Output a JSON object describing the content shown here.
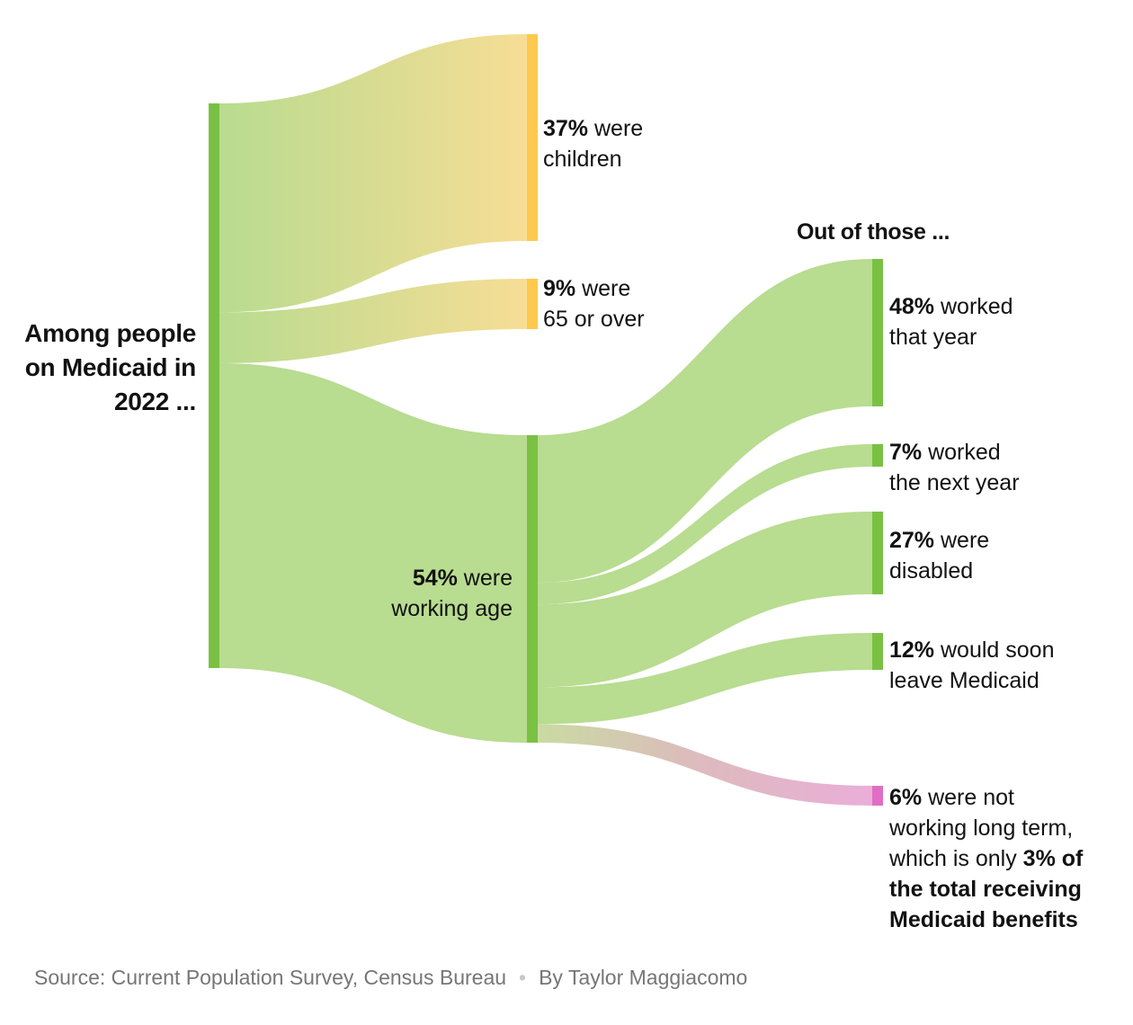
{
  "chart_data": {
    "type": "sankey",
    "colors": {
      "node_green": "#7ac143",
      "node_yellow": "#fec94d",
      "node_pink": "#e06ec4",
      "flow_green": "#b8dc90",
      "flow_yellow": "#f7dd95",
      "flow_pink": "#eaaed9"
    },
    "root": {
      "label": "Among people on Medicaid in 2022 ..."
    },
    "level1": [
      {
        "id": "children",
        "value": 37,
        "pct": "37%",
        "rest": " were",
        "rest2": "children"
      },
      {
        "id": "seniors",
        "value": 9,
        "pct": "9%",
        "rest": " were",
        "rest2": "65 or over"
      },
      {
        "id": "working_age",
        "value": 54,
        "pct": "54%",
        "rest": " were",
        "rest2": "working age"
      }
    ],
    "level2_header": "Out of those ...",
    "level2": [
      {
        "id": "worked",
        "value": 48,
        "pct": "48%",
        "rest": " worked",
        "rest2": "that year"
      },
      {
        "id": "worked_next",
        "value": 7,
        "pct": "7%",
        "rest": " worked",
        "rest2": "the next year"
      },
      {
        "id": "disabled",
        "value": 27,
        "pct": "27%",
        "rest": " were",
        "rest2": "disabled"
      },
      {
        "id": "leave",
        "value": 12,
        "pct": "12%",
        "rest": " would soon",
        "rest2": "leave Medicaid"
      },
      {
        "id": "not_working",
        "value": 6,
        "pct": "6%",
        "rest": " were not",
        "rest2": "working long term,",
        "rest3": "which is only ",
        "bold3": "3% of",
        "bold4": "the total receiving",
        "bold5": "Medicaid benefits"
      }
    ]
  },
  "footer": {
    "source": "Source: Current Population Survey, Census Bureau",
    "separator": "•",
    "byline": "By Taylor Maggiacomo"
  }
}
